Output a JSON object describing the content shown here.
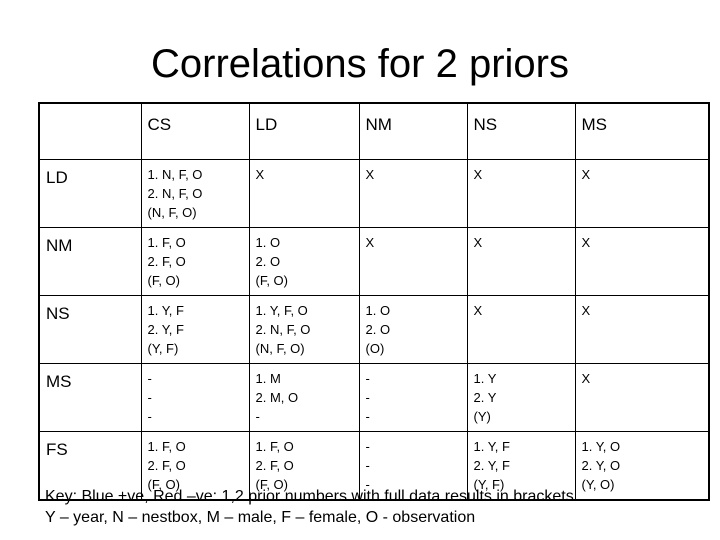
{
  "title": "Correlations for 2 priors",
  "table": {
    "header": [
      "CS",
      "LD",
      "NM",
      "NS",
      "MS"
    ],
    "rows": [
      {
        "label": "LD",
        "cells": [
          [
            "1. N, F, O",
            "2. N, F, O",
            "(N, F, O)"
          ],
          [
            "X"
          ],
          [
            "X"
          ],
          [
            "X"
          ],
          [
            "X"
          ]
        ]
      },
      {
        "label": "NM",
        "cells": [
          [
            "1. F, O",
            "2. F, O",
            "(F, O)"
          ],
          [
            "1. O",
            "2. O",
            "(F, O)"
          ],
          [
            "X"
          ],
          [
            "X"
          ],
          [
            "X"
          ]
        ]
      },
      {
        "label": "NS",
        "cells": [
          [
            "1. Y, F",
            "2. Y, F",
            "(Y, F)"
          ],
          [
            "1. Y, F, O",
            "2. N, F, O",
            "(N, F, O)"
          ],
          [
            "1. O",
            "2. O",
            "(O)"
          ],
          [
            "X"
          ],
          [
            "X"
          ]
        ]
      },
      {
        "label": "MS",
        "cells": [
          [
            "-",
            "-",
            "-"
          ],
          [
            "1. M",
            "2. M, O",
            "-"
          ],
          [
            "-",
            "-",
            "-"
          ],
          [
            "1. Y",
            "2. Y",
            "(Y)"
          ],
          [
            "X"
          ]
        ]
      },
      {
        "label": "FS",
        "cells": [
          [
            "1. F, O",
            "2. F, O",
            "(F, O)"
          ],
          [
            "1. F, O",
            "2. F, O",
            "(F, O)"
          ],
          [
            "-",
            "-",
            "-"
          ],
          [
            "1. Y, F",
            "2. Y, F",
            "(Y, F)"
          ],
          [
            "1. Y, O",
            "2. Y, O",
            "(Y, O)"
          ]
        ]
      }
    ]
  },
  "key": [
    "Key: Blue +ve, Red –ve:  1,2 prior numbers with full data results in brackets",
    "Y – year, N – nestbox, M – male, F – female, O - observation"
  ]
}
